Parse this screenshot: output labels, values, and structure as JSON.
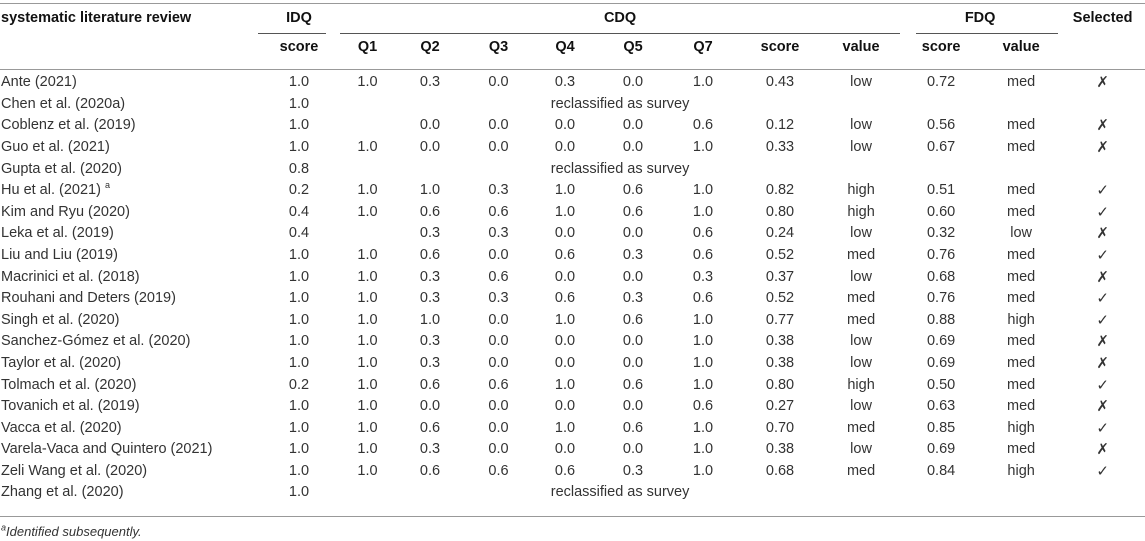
{
  "headers": {
    "review": "systematic literature review",
    "idq": "IDQ",
    "cdq": "CDQ",
    "fdq": "FDQ",
    "selected": "Selected",
    "idq_score": "score",
    "q1": "Q1",
    "q2": "Q2",
    "q3": "Q3",
    "q4": "Q4",
    "q5": "Q5",
    "q7": "Q7",
    "cdq_score": "score",
    "cdq_value": "value",
    "fdq_score": "score",
    "fdq_value": "value"
  },
  "rows": [
    {
      "review": "Ante (2021)",
      "idq": "1.0",
      "q1": "1.0",
      "q2": "0.3",
      "q3": "0.0",
      "q4": "0.3",
      "q5": "0.0",
      "q7": "1.0",
      "cdq_score": "0.43",
      "cdq_value": "low",
      "fdq_score": "0.72",
      "fdq_value": "med",
      "selected": "✗"
    },
    {
      "review": "Chen et al. (2020a)",
      "idq": "1.0",
      "reclassified": "reclassified as survey"
    },
    {
      "review": "Coblenz et al. (2019)",
      "idq": "1.0",
      "q1": "",
      "q2": "0.0",
      "q3": "0.0",
      "q4": "0.0",
      "q5": "0.0",
      "q7": "0.6",
      "cdq_score": "0.12",
      "cdq_value": "low",
      "fdq_score": "0.56",
      "fdq_value": "med",
      "selected": "✗"
    },
    {
      "review": "Guo et al. (2021)",
      "idq": "1.0",
      "q1": "1.0",
      "q2": "0.0",
      "q3": "0.0",
      "q4": "0.0",
      "q5": "0.0",
      "q7": "1.0",
      "cdq_score": "0.33",
      "cdq_value": "low",
      "fdq_score": "0.67",
      "fdq_value": "med",
      "selected": "✗"
    },
    {
      "review": "Gupta et al. (2020)",
      "idq": "0.8",
      "reclassified": "reclassified as survey"
    },
    {
      "review": "Hu et al. (2021)",
      "sup": "a",
      "idq": "0.2",
      "q1": "1.0",
      "q2": "1.0",
      "q3": "0.3",
      "q4": "1.0",
      "q5": "0.6",
      "q7": "1.0",
      "cdq_score": "0.82",
      "cdq_value": "high",
      "fdq_score": "0.51",
      "fdq_value": "med",
      "selected": "✓"
    },
    {
      "review": "Kim and Ryu (2020)",
      "idq": "0.4",
      "q1": "1.0",
      "q2": "0.6",
      "q3": "0.6",
      "q4": "1.0",
      "q5": "0.6",
      "q7": "1.0",
      "cdq_score": "0.80",
      "cdq_value": "high",
      "fdq_score": "0.60",
      "fdq_value": "med",
      "selected": "✓"
    },
    {
      "review": "Leka et al. (2019)",
      "idq": "0.4",
      "q1": "",
      "q2": "0.3",
      "q3": "0.3",
      "q4": "0.0",
      "q5": "0.0",
      "q7": "0.6",
      "cdq_score": "0.24",
      "cdq_value": "low",
      "fdq_score": "0.32",
      "fdq_value": "low",
      "selected": "✗"
    },
    {
      "review": "Liu and Liu (2019)",
      "idq": "1.0",
      "q1": "1.0",
      "q2": "0.6",
      "q3": "0.0",
      "q4": "0.6",
      "q5": "0.3",
      "q7": "0.6",
      "cdq_score": "0.52",
      "cdq_value": "med",
      "fdq_score": "0.76",
      "fdq_value": "med",
      "selected": "✓"
    },
    {
      "review": "Macrinici et al. (2018)",
      "idq": "1.0",
      "q1": "1.0",
      "q2": "0.3",
      "q3": "0.6",
      "q4": "0.0",
      "q5": "0.0",
      "q7": "0.3",
      "cdq_score": "0.37",
      "cdq_value": "low",
      "fdq_score": "0.68",
      "fdq_value": "med",
      "selected": "✗"
    },
    {
      "review": "Rouhani and Deters (2019)",
      "idq": "1.0",
      "q1": "1.0",
      "q2": "0.3",
      "q3": "0.3",
      "q4": "0.6",
      "q5": "0.3",
      "q7": "0.6",
      "cdq_score": "0.52",
      "cdq_value": "med",
      "fdq_score": "0.76",
      "fdq_value": "med",
      "selected": "✓"
    },
    {
      "review": "Singh et al. (2020)",
      "idq": "1.0",
      "q1": "1.0",
      "q2": "1.0",
      "q3": "0.0",
      "q4": "1.0",
      "q5": "0.6",
      "q7": "1.0",
      "cdq_score": "0.77",
      "cdq_value": "med",
      "fdq_score": "0.88",
      "fdq_value": "high",
      "selected": "✓"
    },
    {
      "review": "Sanchez-Gómez et al. (2020)",
      "idq": "1.0",
      "q1": "1.0",
      "q2": "0.3",
      "q3": "0.0",
      "q4": "0.0",
      "q5": "0.0",
      "q7": "1.0",
      "cdq_score": "0.38",
      "cdq_value": "low",
      "fdq_score": "0.69",
      "fdq_value": "med",
      "selected": "✗"
    },
    {
      "review": "Taylor et al. (2020)",
      "idq": "1.0",
      "q1": "1.0",
      "q2": "0.3",
      "q3": "0.0",
      "q4": "0.0",
      "q5": "0.0",
      "q7": "1.0",
      "cdq_score": "0.38",
      "cdq_value": "low",
      "fdq_score": "0.69",
      "fdq_value": "med",
      "selected": "✗"
    },
    {
      "review": "Tolmach et al. (2020)",
      "idq": "0.2",
      "q1": "1.0",
      "q2": "0.6",
      "q3": "0.6",
      "q4": "1.0",
      "q5": "0.6",
      "q7": "1.0",
      "cdq_score": "0.80",
      "cdq_value": "high",
      "fdq_score": "0.50",
      "fdq_value": "med",
      "selected": "✓"
    },
    {
      "review": "Tovanich et al. (2019)",
      "idq": "1.0",
      "q1": "1.0",
      "q2": "0.0",
      "q3": "0.0",
      "q4": "0.0",
      "q5": "0.0",
      "q7": "0.6",
      "cdq_score": "0.27",
      "cdq_value": "low",
      "fdq_score": "0.63",
      "fdq_value": "med",
      "selected": "✗"
    },
    {
      "review": "Vacca et al. (2020)",
      "idq": "1.0",
      "q1": "1.0",
      "q2": "0.6",
      "q3": "0.0",
      "q4": "1.0",
      "q5": "0.6",
      "q7": "1.0",
      "cdq_score": "0.70",
      "cdq_value": "med",
      "fdq_score": "0.85",
      "fdq_value": "high",
      "selected": "✓"
    },
    {
      "review": "Varela-Vaca and Quintero (2021)",
      "idq": "1.0",
      "q1": "1.0",
      "q2": "0.3",
      "q3": "0.0",
      "q4": "0.0",
      "q5": "0.0",
      "q7": "1.0",
      "cdq_score": "0.38",
      "cdq_value": "low",
      "fdq_score": "0.69",
      "fdq_value": "med",
      "selected": "✗"
    },
    {
      "review": "Zeli Wang et al. (2020)",
      "idq": "1.0",
      "q1": "1.0",
      "q2": "0.6",
      "q3": "0.6",
      "q4": "0.6",
      "q5": "0.3",
      "q7": "1.0",
      "cdq_score": "0.68",
      "cdq_value": "med",
      "fdq_score": "0.84",
      "fdq_value": "high",
      "selected": "✓"
    },
    {
      "review": "Zhang et al. (2020)",
      "idq": "1.0",
      "reclassified": "reclassified as survey"
    }
  ],
  "footnote": {
    "marker": "a",
    "text": "Identified subsequently."
  }
}
